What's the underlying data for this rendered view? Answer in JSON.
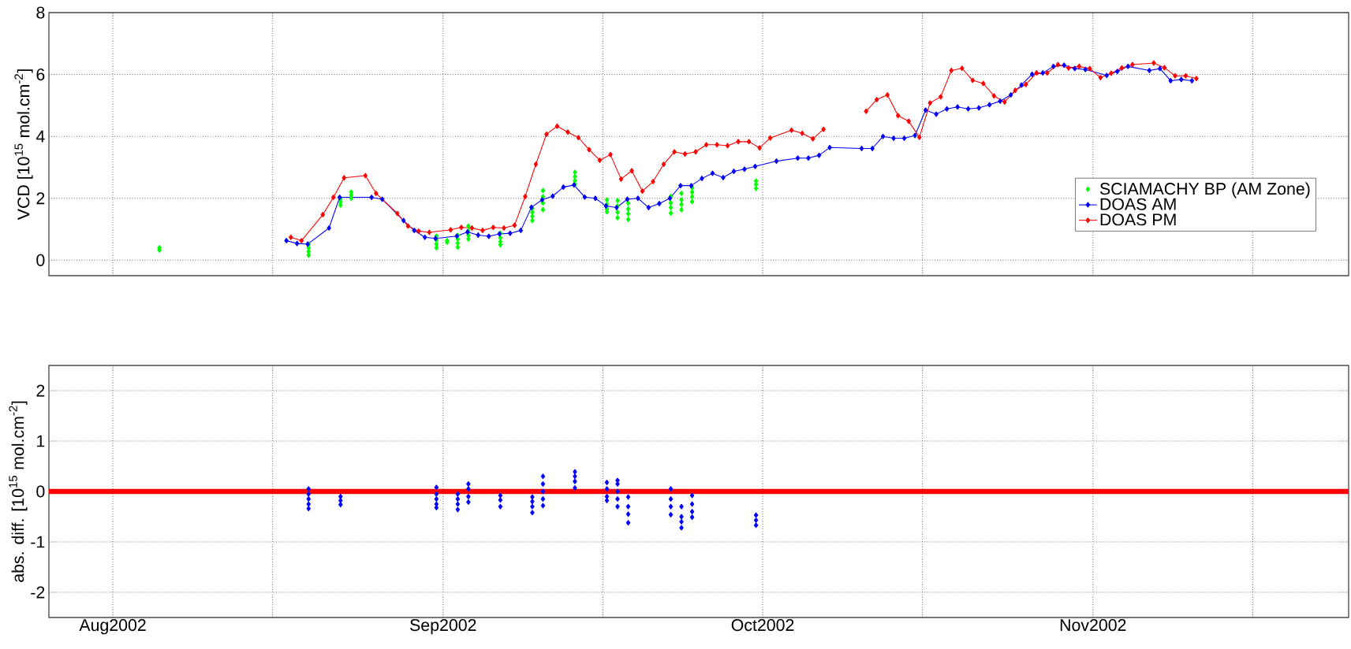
{
  "chart_data": [
    {
      "type": "line",
      "ylabel": "VCD [10$^{15}$ mol.cm$^{-2}$]",
      "xlim": [
        "2002-07-26",
        "2002-11-25"
      ],
      "xticks": [
        "2002-08-01",
        "2002-08-16",
        "2002-09-01",
        "2002-09-16",
        "2002-10-01",
        "2002-10-16",
        "2002-11-01",
        "2002-11-16"
      ],
      "ylim": [
        -0.5,
        8
      ],
      "yticks": [
        0,
        2,
        4,
        6,
        8
      ],
      "grid": true,
      "legend": "right",
      "tick_labels": "y",
      "marker": "diamond",
      "series": [
        {
          "name": "SCIAMACHY BP (AM Zone)",
          "type": "scatter",
          "color": "#00ff00",
          "x": [
            "2002-08-05T09:00",
            "2002-08-05T09:00",
            "2002-08-19T09:00",
            "2002-08-19T09:00",
            "2002-08-19T09:00",
            "2002-08-19T09:00",
            "2002-08-22T09:00",
            "2002-08-22T09:00",
            "2002-08-22T09:00",
            "2002-08-23T09:00",
            "2002-08-23T09:00",
            "2002-08-23T09:00",
            "2002-08-31T09:00",
            "2002-08-31T09:00",
            "2002-08-31T09:00",
            "2002-08-31T09:00",
            "2002-09-01T09:00",
            "2002-09-01T09:00",
            "2002-09-02T09:00",
            "2002-09-02T09:00",
            "2002-09-02T09:00",
            "2002-09-02T09:00",
            "2002-09-03T09:00",
            "2002-09-03T09:00",
            "2002-09-03T09:00",
            "2002-09-03T09:00",
            "2002-09-06T09:00",
            "2002-09-06T09:00",
            "2002-09-06T09:00",
            "2002-09-06T09:00",
            "2002-09-09T09:00",
            "2002-09-09T09:00",
            "2002-09-09T09:00",
            "2002-09-09T09:00",
            "2002-09-10T09:00",
            "2002-09-10T09:00",
            "2002-09-10T09:00",
            "2002-09-10T09:00",
            "2002-09-13T09:00",
            "2002-09-13T09:00",
            "2002-09-13T09:00",
            "2002-09-13T09:00",
            "2002-09-16T09:00",
            "2002-09-16T09:00",
            "2002-09-16T09:00",
            "2002-09-16T09:00",
            "2002-09-17T09:00",
            "2002-09-17T09:00",
            "2002-09-17T09:00",
            "2002-09-17T09:00",
            "2002-09-18T09:00",
            "2002-09-18T09:00",
            "2002-09-18T09:00",
            "2002-09-18T09:00",
            "2002-09-22T09:00",
            "2002-09-22T09:00",
            "2002-09-22T09:00",
            "2002-09-22T09:00",
            "2002-09-23T09:00",
            "2002-09-23T09:00",
            "2002-09-23T09:00",
            "2002-09-23T09:00",
            "2002-09-24T09:00",
            "2002-09-24T09:00",
            "2002-09-24T09:00",
            "2002-09-24T09:00",
            "2002-09-30T09:00",
            "2002-09-30T09:00",
            "2002-09-30T09:00"
          ],
          "values": [
            0.4,
            0.33,
            0.52,
            0.4,
            0.28,
            0.16,
            1.98,
            1.88,
            1.78,
            2.2,
            2.1,
            2.0,
            0.78,
            0.65,
            0.52,
            0.4,
            0.63,
            0.58,
            0.8,
            0.68,
            0.55,
            0.42,
            1.1,
            0.95,
            0.8,
            0.68,
            0.87,
            0.72,
            0.6,
            0.5,
            1.67,
            1.55,
            1.42,
            1.28,
            2.25,
            2.05,
            1.85,
            1.63,
            2.84,
            2.7,
            2.57,
            2.45,
            1.95,
            1.8,
            1.65,
            1.56,
            1.93,
            1.75,
            1.55,
            1.37,
            1.84,
            1.65,
            1.5,
            1.32,
            2.06,
            1.85,
            1.7,
            1.52,
            2.16,
            1.95,
            1.8,
            1.63,
            2.34,
            2.2,
            2.05,
            1.89,
            2.56,
            2.45,
            2.32
          ]
        },
        {
          "name": "DOAS AM",
          "color": "#0000ff",
          "x": [
            "2002-08-17T07:00",
            "2002-08-18T07:00",
            "2002-08-19T07:00",
            "2002-08-21T07:00",
            "2002-08-22T07:00",
            "2002-08-25T07:00",
            "2002-08-26T07:00",
            "2002-08-28T07:00",
            "2002-08-29T07:00",
            "2002-08-30T07:00",
            "2002-08-31T07:00",
            "2002-09-02T07:00",
            "2002-09-03T07:00",
            "2002-09-04T07:00",
            "2002-09-05T07:00",
            "2002-09-06T07:00",
            "2002-09-07T07:00",
            "2002-09-08T07:00",
            "2002-09-09T07:00",
            "2002-09-10T07:00",
            "2002-09-11T07:00",
            "2002-09-12T07:00",
            "2002-09-13T07:00",
            "2002-09-14T07:00",
            "2002-09-15T07:00",
            "2002-09-16T07:00",
            "2002-09-17T07:00",
            "2002-09-18T07:00",
            "2002-09-19T07:00",
            "2002-09-20T07:00",
            "2002-09-21T07:00",
            "2002-09-22T07:00",
            "2002-09-23T07:00",
            "2002-09-24T07:00",
            "2002-09-25T07:00",
            "2002-09-26T07:00",
            "2002-09-27T07:00",
            "2002-09-28T07:00",
            "2002-09-29T07:00",
            "2002-09-30T07:00",
            "2002-10-02T07:00",
            "2002-10-04T07:00",
            "2002-10-05T07:00",
            "2002-10-06T07:00",
            "2002-10-07T07:00",
            "2002-10-10T07:00",
            "2002-10-11T07:00",
            "2002-10-12T07:00",
            "2002-10-13T07:00",
            "2002-10-14T07:00",
            "2002-10-15T07:00",
            "2002-10-16T07:00",
            "2002-10-17T07:00",
            "2002-10-18T07:00",
            "2002-10-19T07:00",
            "2002-10-20T07:00",
            "2002-10-21T07:00",
            "2002-10-22T07:00",
            "2002-10-23T07:00",
            "2002-10-24T07:00",
            "2002-10-25T07:00",
            "2002-10-26T07:00",
            "2002-10-27T07:00",
            "2002-10-28T07:00",
            "2002-10-29T07:00",
            "2002-10-30T07:00",
            "2002-10-31T07:00",
            "2002-11-02T07:00",
            "2002-11-03T07:00",
            "2002-11-04T07:00",
            "2002-11-06T07:00",
            "2002-11-07T07:00",
            "2002-11-08T07:00",
            "2002-11-09T07:00",
            "2002-11-10T07:00"
          ],
          "values": [
            0.63,
            0.54,
            0.52,
            1.04,
            2.03,
            2.03,
            1.97,
            1.28,
            0.96,
            0.74,
            0.7,
            0.78,
            0.91,
            0.81,
            0.77,
            0.85,
            0.87,
            0.96,
            1.71,
            1.95,
            2.07,
            2.36,
            2.43,
            2.04,
            2.0,
            1.75,
            1.7,
            1.97,
            2.0,
            1.7,
            1.83,
            2.0,
            2.41,
            2.41,
            2.64,
            2.81,
            2.67,
            2.87,
            2.94,
            3.03,
            3.2,
            3.3,
            3.3,
            3.39,
            3.64,
            3.61,
            3.61,
            4.0,
            3.94,
            3.94,
            4.03,
            4.85,
            4.72,
            4.89,
            4.95,
            4.89,
            4.92,
            5.02,
            5.14,
            5.34,
            5.66,
            6.01,
            6.05,
            6.26,
            6.3,
            6.19,
            6.16,
            5.97,
            6.1,
            6.26,
            6.13,
            6.19,
            5.8,
            5.84,
            5.8
          ]
        },
        {
          "name": "DOAS PM",
          "color": "#ff0000",
          "x": [
            "2002-08-17T17:00",
            "2002-08-18T17:00",
            "2002-08-20T17:00",
            "2002-08-21T17:00",
            "2002-08-22T17:00",
            "2002-08-24T17:00",
            "2002-08-25T17:00",
            "2002-08-27T17:00",
            "2002-08-28T17:00",
            "2002-08-29T17:00",
            "2002-08-30T17:00",
            "2002-09-01T17:00",
            "2002-09-02T17:00",
            "2002-09-03T17:00",
            "2002-09-04T17:00",
            "2002-09-05T17:00",
            "2002-09-06T17:00",
            "2002-09-07T17:00",
            "2002-09-08T17:00",
            "2002-09-09T17:00",
            "2002-09-10T17:00",
            "2002-09-11T17:00",
            "2002-09-12T17:00",
            "2002-09-13T17:00",
            "2002-09-14T17:00",
            "2002-09-15T17:00",
            "2002-09-16T17:00",
            "2002-09-17T17:00",
            "2002-09-18T17:00",
            "2002-09-19T17:00",
            "2002-09-20T17:00",
            "2002-09-21T17:00",
            "2002-09-22T17:00",
            "2002-09-23T17:00",
            "2002-09-24T17:00",
            "2002-09-25T17:00",
            "2002-09-26T17:00",
            "2002-09-27T17:00",
            "2002-09-28T17:00",
            "2002-09-29T17:00",
            "2002-09-30T17:00",
            "2002-10-01T17:00",
            "2002-10-03T17:00",
            "2002-10-04T17:00",
            "2002-10-05T17:00",
            "2002-10-06T17:00",
            "2002-10-08T17:00",
            "2002-10-10T17:00",
            "2002-10-11T17:00",
            "2002-10-12T17:00",
            "2002-10-13T17:00",
            "2002-10-14T17:00",
            "2002-10-15T17:00",
            "2002-10-16T17:00",
            "2002-10-17T17:00",
            "2002-10-18T17:00",
            "2002-10-19T17:00",
            "2002-10-20T17:00",
            "2002-10-21T17:00",
            "2002-10-22T17:00",
            "2002-10-23T17:00",
            "2002-10-24T17:00",
            "2002-10-25T17:00",
            "2002-10-26T17:00",
            "2002-10-27T17:00",
            "2002-10-28T17:00",
            "2002-10-29T17:00",
            "2002-10-30T17:00",
            "2002-10-31T17:00",
            "2002-11-01T17:00",
            "2002-11-02T17:00",
            "2002-11-03T17:00",
            "2002-11-04T17:00",
            "2002-11-06T17:00",
            "2002-11-07T17:00",
            "2002-11-08T17:00",
            "2002-11-09T17:00",
            "2002-11-10T17:00"
          ],
          "values": [
            0.74,
            0.63,
            1.47,
            2.03,
            2.66,
            2.73,
            2.16,
            1.51,
            1.1,
            0.94,
            0.9,
            0.98,
            1.06,
            1.04,
            0.96,
            1.06,
            1.04,
            1.13,
            2.06,
            3.1,
            4.07,
            4.33,
            4.14,
            3.96,
            3.57,
            3.23,
            3.41,
            2.62,
            2.89,
            2.23,
            2.54,
            3.1,
            3.5,
            3.43,
            3.5,
            3.73,
            3.73,
            3.7,
            3.83,
            3.83,
            3.63,
            3.95,
            4.2,
            4.1,
            3.92,
            4.23,
            null,
            4.81,
            5.19,
            5.34,
            4.67,
            4.49,
            3.97,
            5.08,
            5.28,
            6.13,
            6.2,
            5.81,
            5.71,
            5.31,
            5.11,
            5.49,
            5.68,
            6.05,
            6.05,
            6.32,
            6.21,
            6.26,
            6.19,
            5.9,
            6.04,
            6.21,
            6.32,
            6.37,
            6.22,
            5.96,
            5.96,
            5.87
          ]
        }
      ]
    },
    {
      "type": "scatter",
      "ylabel": "abs. diff. [10$^{15}$ mol.cm$^{-2}$]",
      "xlim": [
        "2002-07-26",
        "2002-11-25"
      ],
      "xticks": [
        {
          "value": "2002-08-01",
          "label": "Aug2002"
        },
        {
          "value": "2002-08-16",
          "label": null
        },
        {
          "value": "2002-09-01",
          "label": "Sep2002"
        },
        {
          "value": "2002-09-16",
          "label": null
        },
        {
          "value": "2002-10-01",
          "label": "Oct2002"
        },
        {
          "value": "2002-10-16",
          "label": null
        },
        {
          "value": "2002-11-01",
          "label": "Nov2002"
        },
        {
          "value": "2002-11-16",
          "label": null
        }
      ],
      "ylim": [
        -2.5,
        2.5
      ],
      "yticks": [
        -2,
        -1,
        0,
        1,
        2
      ],
      "grid": true,
      "marker": "diamond",
      "ref_lines": [
        {
          "axis": "y",
          "value": 0,
          "color": "#ff0000"
        }
      ],
      "series": [
        {
          "color": "#0000ff",
          "x": [
            "2002-08-19T09:00",
            "2002-08-19T09:00",
            "2002-08-19T09:00",
            "2002-08-19T09:00",
            "2002-08-19T09:00",
            "2002-08-22T09:00",
            "2002-08-22T09:00",
            "2002-08-22T09:00",
            "2002-08-31T09:00",
            "2002-08-31T09:00",
            "2002-08-31T09:00",
            "2002-08-31T09:00",
            "2002-08-31T09:00",
            "2002-09-02T09:00",
            "2002-09-02T09:00",
            "2002-09-02T09:00",
            "2002-09-02T09:00",
            "2002-09-03T09:00",
            "2002-09-03T09:00",
            "2002-09-03T09:00",
            "2002-09-03T09:00",
            "2002-09-06T09:00",
            "2002-09-06T09:00",
            "2002-09-06T09:00",
            "2002-09-09T09:00",
            "2002-09-09T09:00",
            "2002-09-09T09:00",
            "2002-09-09T09:00",
            "2002-09-10T09:00",
            "2002-09-10T09:00",
            "2002-09-10T09:00",
            "2002-09-10T09:00",
            "2002-09-10T09:00",
            "2002-09-13T09:00",
            "2002-09-13T09:00",
            "2002-09-13T09:00",
            "2002-09-13T09:00",
            "2002-09-16T09:00",
            "2002-09-16T09:00",
            "2002-09-16T09:00",
            "2002-09-16T09:00",
            "2002-09-17T09:00",
            "2002-09-17T09:00",
            "2002-09-17T09:00",
            "2002-09-17T09:00",
            "2002-09-17T09:00",
            "2002-09-18T09:00",
            "2002-09-18T09:00",
            "2002-09-18T09:00",
            "2002-09-18T09:00",
            "2002-09-22T09:00",
            "2002-09-22T09:00",
            "2002-09-22T09:00",
            "2002-09-22T09:00",
            "2002-09-23T09:00",
            "2002-09-23T09:00",
            "2002-09-23T09:00",
            "2002-09-23T09:00",
            "2002-09-24T09:00",
            "2002-09-24T09:00",
            "2002-09-24T09:00",
            "2002-09-24T09:00",
            "2002-09-30T09:00",
            "2002-09-30T09:00",
            "2002-09-30T09:00"
          ],
          "values": [
            0.05,
            -0.05,
            -0.15,
            -0.25,
            -0.34,
            -0.1,
            -0.18,
            -0.26,
            0.08,
            -0.05,
            -0.15,
            -0.25,
            -0.32,
            -0.05,
            -0.15,
            -0.25,
            -0.36,
            0.15,
            0.05,
            -0.1,
            -0.21,
            -0.08,
            -0.17,
            -0.3,
            -0.11,
            -0.2,
            -0.3,
            -0.42,
            0.3,
            0.15,
            0.0,
            -0.15,
            -0.28,
            0.39,
            0.3,
            0.2,
            0.07,
            0.18,
            0.05,
            -0.1,
            -0.18,
            0.22,
            0.15,
            0.0,
            -0.15,
            -0.3,
            -0.11,
            -0.3,
            -0.45,
            -0.62,
            0.05,
            -0.15,
            -0.3,
            -0.46,
            -0.3,
            -0.5,
            -0.6,
            -0.72,
            -0.08,
            -0.25,
            -0.4,
            -0.51,
            -0.47,
            -0.57,
            -0.67
          ]
        }
      ]
    }
  ]
}
